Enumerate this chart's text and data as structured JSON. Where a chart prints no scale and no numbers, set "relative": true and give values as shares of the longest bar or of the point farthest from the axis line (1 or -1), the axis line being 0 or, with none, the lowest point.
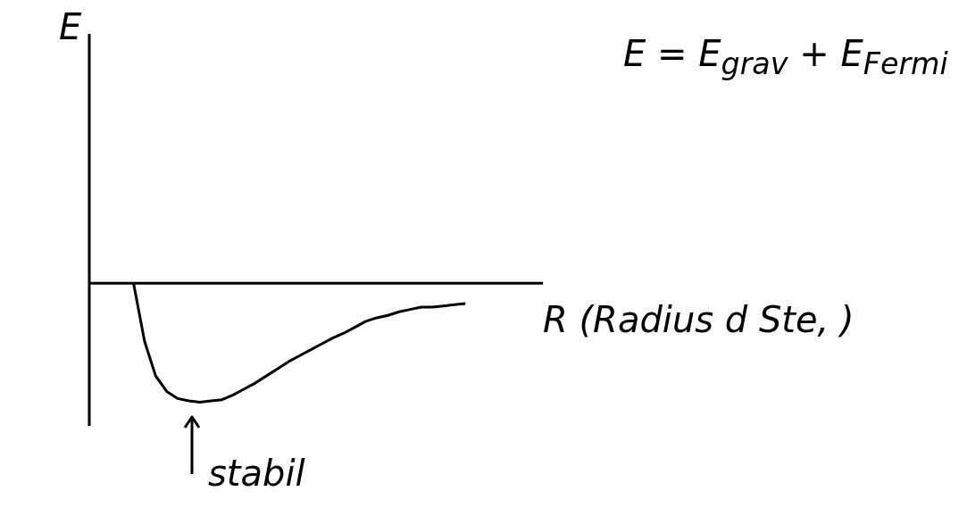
{
  "chart_data": {
    "type": "line",
    "relative": true,
    "xlabel": "R (Radius d Ste, )",
    "annotations": [
      "E",
      "E = E$_{grav}$ + E$_{Fermi}$",
      "stabil"
    ],
    "categories": [
      null,
      null,
      null,
      null,
      null,
      null,
      null,
      null,
      null,
      null,
      null,
      null,
      null,
      null,
      null,
      null,
      null,
      null,
      null,
      null,
      null,
      null,
      null,
      null,
      null,
      null,
      null,
      null,
      null,
      null,
      null,
      null,
      null,
      null,
      null,
      null,
      null,
      null,
      null,
      null,
      null,
      null
    ],
    "series": [
      {
        "color": "#000000",
        "values": [
          null,
          null,
          null,
          null,
          0,
          -0.49,
          -0.78,
          -0.91,
          -0.97,
          -0.99,
          -1,
          -0.99,
          -0.98,
          -0.94,
          -0.89,
          -0.84,
          -0.78,
          -0.72,
          -0.66,
          -0.61,
          -0.56,
          -0.51,
          -0.46,
          -0.42,
          -0.37,
          -0.32,
          -0.29,
          -0.27,
          -0.24,
          -0.22,
          -0.2,
          -0.2,
          -0.19,
          -0.18,
          -0.17,
          null,
          null,
          null,
          null,
          null,
          null,
          null
        ]
      }
    ],
    "marker": "none",
    "grid": false,
    "legend": false
  }
}
